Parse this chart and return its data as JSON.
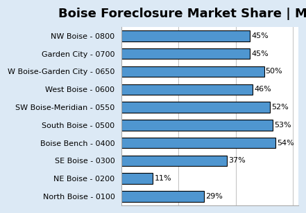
{
  "title": "Boise Foreclosure Market Share | MLS Area",
  "categories": [
    "North Boise - 0100",
    "NE Boise - 0200",
    "SE Boise - 0300",
    "Boise Bench - 0400",
    "South Boise - 0500",
    "SW Boise-Meridian - 0550",
    "West Boise - 0600",
    "W Boise-Garden City - 0650",
    "Garden City - 0700",
    "NW Boise - 0800"
  ],
  "values": [
    29,
    11,
    37,
    54,
    53,
    52,
    46,
    50,
    45,
    45
  ],
  "bar_color": "#4f96d0",
  "bar_edge_color": "#000000",
  "bar_edge_width": 0.8,
  "title_fontsize": 13,
  "label_fontsize": 8,
  "value_fontsize": 8,
  "xlim": [
    0,
    62
  ],
  "background_color": "#dce9f5",
  "plot_bg_color": "#ffffff",
  "grid_color": "#c0c0c0",
  "outer_border_color": "#8ab4d8"
}
